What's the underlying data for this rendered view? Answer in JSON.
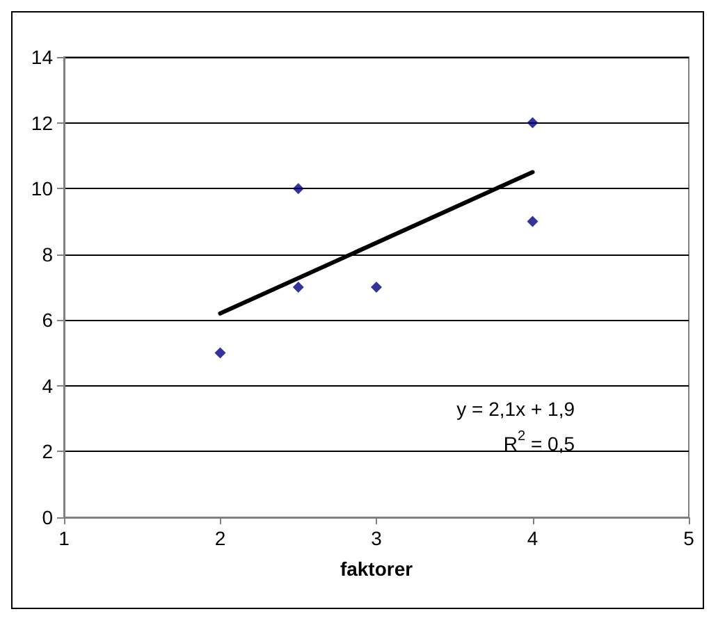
{
  "chart_data": {
    "type": "scatter",
    "xlabel": "faktorer",
    "xlim": [
      1,
      5
    ],
    "xticks": [
      1,
      2,
      3,
      4,
      5
    ],
    "ylim": [
      0,
      14
    ],
    "yticks": [
      0,
      2,
      4,
      6,
      8,
      10,
      12,
      14
    ],
    "grid": "y",
    "marker": "diamond",
    "series": [
      {
        "color": "#000080",
        "x": [
          2,
          2.5,
          2.5,
          3,
          4,
          4
        ],
        "values": [
          5,
          10,
          7,
          7,
          12,
          9
        ]
      },
      {
        "type": "line",
        "color": "#000000",
        "x": [
          2,
          4
        ],
        "values": [
          6.2,
          10.5
        ],
        "line_style": "solid",
        "marker": "none"
      }
    ],
    "annotations": [
      "y = 2,1x + 1,9",
      "R$^{2}$ = 0,5"
    ]
  }
}
